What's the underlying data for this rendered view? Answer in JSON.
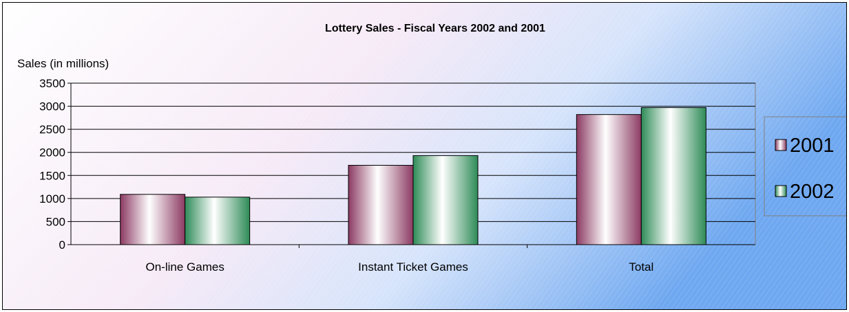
{
  "chart_data": {
    "type": "bar",
    "title": "Lottery Sales  -  Fiscal Years 2002 and 2001",
    "xlabel": "",
    "ylabel": "Sales (in millions)",
    "categories": [
      "On-line Games",
      "Instant Ticket Games",
      "Total"
    ],
    "series": [
      {
        "name": "2001",
        "values": [
          1090,
          1720,
          2820
        ]
      },
      {
        "name": "2002",
        "values": [
          1030,
          1930,
          2970
        ]
      }
    ],
    "ylim": [
      0,
      3500
    ],
    "yticks": [
      0,
      500,
      1000,
      1500,
      2000,
      2500,
      3000,
      3500
    ],
    "grid": true,
    "legend": "right",
    "colors": {
      "2001": "#8b3a62",
      "2002": "#2e8b57",
      "background_left": "#ffffff",
      "background_right": "#6fa8f0"
    }
  }
}
